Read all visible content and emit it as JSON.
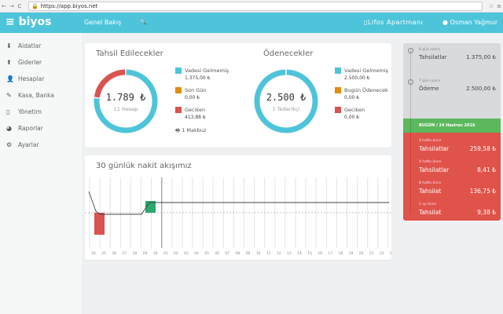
{
  "browser": {
    "url": "https://app.biyos.net"
  },
  "header": {
    "logo": "biyos",
    "title": "Genel Bakış",
    "apartment": "Lifos Apartmanı",
    "user": "Osman Yağmur"
  },
  "sidebar": {
    "items": [
      {
        "label": "Aidatlar",
        "icon": "download-icon"
      },
      {
        "label": "Giderler",
        "icon": "upload-icon"
      },
      {
        "label": "Hesaplar",
        "icon": "user-icon"
      },
      {
        "label": "Kasa, Banka",
        "icon": "wallet-icon"
      },
      {
        "label": "Yönetim",
        "icon": "book-icon"
      },
      {
        "label": "Raporlar",
        "icon": "pie-chart-icon"
      },
      {
        "label": "Ayarlar",
        "icon": "gear-icon"
      }
    ]
  },
  "collect": {
    "title": "Tahsil Edilecekler",
    "total": "1.789 ₺",
    "sub": "11 Hesap",
    "print": "1 Makbuz",
    "legend": [
      {
        "label": "Vadesi Gelmemiş",
        "value": "1.375,00 ₺",
        "color": "#4ec4da"
      },
      {
        "label": "Son Gün",
        "value": "0,00 ₺",
        "color": "#e08e0b"
      },
      {
        "label": "Geciken",
        "value": "413,88 ₺",
        "color": "#d9534f"
      }
    ],
    "shares": [
      1375,
      0,
      413.88
    ]
  },
  "pay": {
    "title": "Ödenecekler",
    "total": "2.500 ₺",
    "sub": "1 Tedarikçi",
    "legend": [
      {
        "label": "Vadesi Gelmemiş",
        "value": "2.500,00 ₺",
        "color": "#4ec4da"
      },
      {
        "label": "Bugün Ödenecek",
        "value": "0,00 ₺",
        "color": "#e08e0b"
      },
      {
        "label": "Geciken",
        "value": "0,00 ₺",
        "color": "#d9534f"
      }
    ],
    "shares": [
      2500,
      0,
      0
    ]
  },
  "cashflow": {
    "title": "30 günlük nakit akışımız",
    "days": [
      "24",
      "25",
      "26",
      "27",
      "28",
      "29",
      "30",
      "01",
      "02",
      "03",
      "04",
      "05",
      "06",
      "07",
      "08",
      "09",
      "10",
      "11",
      "12",
      "13",
      "14",
      "15",
      "16",
      "17",
      "18",
      "19",
      "20",
      "21",
      "22",
      "23"
    ]
  },
  "timeline": {
    "future": [
      {
        "when": "8 gün sonra",
        "label": "Tahsilatlar",
        "amount": "1.375,00 ₺"
      },
      {
        "when": "7 gün sonra",
        "label": "Ödeme",
        "amount": "2.500,00 ₺"
      }
    ],
    "today": "BUGÜN / 24 Haziran 2016",
    "past": [
      {
        "when": "4 hafta önce",
        "label": "Tahsilatlar",
        "amount": "259,58 ₺"
      },
      {
        "when": "4 hafta önce",
        "label": "Tahsilatlar",
        "amount": "8,41 ₺"
      },
      {
        "when": "8 hafta önce",
        "label": "Tahsilat",
        "amount": "136,75 ₺"
      },
      {
        "when": "1 ay önce",
        "label": "Tahsilat",
        "amount": "9,38 ₺"
      }
    ]
  }
}
